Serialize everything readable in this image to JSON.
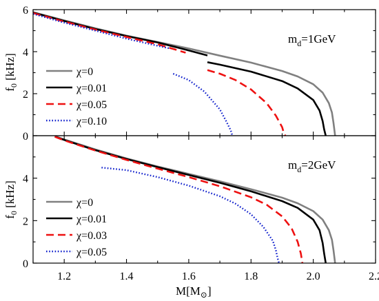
{
  "chart_data": [
    {
      "type": "line",
      "panel": "top",
      "annotation": {
        "base": "m",
        "sub": "d",
        "rest": "=1GeV"
      },
      "ylabel": {
        "base": "f",
        "sub": "0",
        "unit": " [kHz]"
      },
      "xlim": [
        1.1,
        2.2
      ],
      "ylim": [
        0,
        6
      ],
      "xticks": [],
      "yticks": [
        0,
        2,
        4,
        6
      ],
      "legend_position": "lower-left",
      "series": [
        {
          "name": "χ=0",
          "color": "#808080",
          "dash": "solid",
          "x": [
            1.1,
            1.2,
            1.3,
            1.4,
            1.5,
            1.6,
            1.7,
            1.8,
            1.9,
            1.95,
            2.0,
            2.03,
            2.05,
            2.06,
            2.065,
            2.07
          ],
          "y": [
            5.88,
            5.49,
            5.11,
            4.76,
            4.46,
            4.15,
            3.81,
            3.48,
            3.08,
            2.82,
            2.45,
            2.05,
            1.55,
            1.1,
            0.6,
            0.0
          ]
        },
        {
          "name": "χ=0.01",
          "color": "#000000",
          "dash": "solid",
          "segments": [
            {
              "x": [
                1.1,
                1.2,
                1.3,
                1.4,
                1.5,
                1.6,
                1.66
              ],
              "y": [
                5.86,
                5.46,
                5.08,
                4.74,
                4.44,
                4.06,
                3.82
              ]
            },
            {
              "x": [
                1.66,
                1.7,
                1.8,
                1.9,
                1.95,
                2.0,
                2.02,
                2.03,
                2.035,
                2.04
              ],
              "y": [
                3.5,
                3.38,
                3.05,
                2.6,
                2.25,
                1.7,
                1.2,
                0.7,
                0.3,
                0.0
              ]
            }
          ]
        },
        {
          "name": "χ=0.05",
          "color": "#ee1111",
          "dash": "dashed",
          "segments": [
            {
              "x": [
                1.1,
                1.2,
                1.3,
                1.4,
                1.5,
                1.55,
                1.59
              ],
              "y": [
                5.84,
                5.43,
                5.05,
                4.7,
                4.35,
                4.13,
                3.95
              ]
            },
            {
              "x": [
                1.66,
                1.7,
                1.75,
                1.8,
                1.85,
                1.88,
                1.9,
                1.905,
                1.91
              ],
              "y": [
                3.12,
                2.95,
                2.65,
                2.2,
                1.55,
                0.95,
                0.4,
                0.15,
                0.0
              ]
            }
          ]
        },
        {
          "name": "χ=0.10",
          "color": "#1020cc",
          "dash": "dotted",
          "segments": [
            {
              "x": [
                1.1,
                1.2,
                1.3,
                1.4,
                1.5,
                1.54
              ],
              "y": [
                5.8,
                5.38,
                5.0,
                4.62,
                4.28,
                4.15
              ]
            },
            {
              "x": [
                1.55,
                1.6,
                1.65,
                1.7,
                1.72,
                1.735,
                1.74
              ],
              "y": [
                2.95,
                2.65,
                2.1,
                1.25,
                0.7,
                0.25,
                0.0
              ]
            }
          ]
        }
      ]
    },
    {
      "type": "line",
      "panel": "bottom",
      "annotation": {
        "base": "m",
        "sub": "d",
        "rest": "=2GeV"
      },
      "ylabel": {
        "base": "f",
        "sub": "0",
        "unit": " [kHz]"
      },
      "xlabel": {
        "text": "M[M",
        "sub": "⊙",
        "close": "]"
      },
      "xlim": [
        1.1,
        2.2
      ],
      "ylim": [
        0,
        6
      ],
      "xticks": [
        1.2,
        1.4,
        1.6,
        1.8,
        2.0,
        2.2
      ],
      "yticks": [
        0,
        2,
        4
      ],
      "legend_position": "lower-left",
      "series": [
        {
          "name": "χ=0",
          "color": "#808080",
          "dash": "solid",
          "x": [
            1.17,
            1.2,
            1.3,
            1.4,
            1.5,
            1.6,
            1.7,
            1.8,
            1.9,
            1.95,
            2.0,
            2.03,
            2.05,
            2.06,
            2.065,
            2.07
          ],
          "y": [
            5.98,
            5.82,
            5.35,
            4.93,
            4.55,
            4.2,
            3.85,
            3.48,
            3.08,
            2.82,
            2.45,
            2.05,
            1.55,
            1.1,
            0.6,
            0.0
          ]
        },
        {
          "name": "χ=0.01",
          "color": "#000000",
          "dash": "solid",
          "x": [
            1.17,
            1.2,
            1.3,
            1.4,
            1.5,
            1.6,
            1.7,
            1.8,
            1.9,
            1.95,
            2.0,
            2.02,
            2.03,
            2.035,
            2.04
          ],
          "y": [
            5.96,
            5.8,
            5.32,
            4.9,
            4.52,
            4.15,
            3.78,
            3.38,
            2.92,
            2.6,
            2.05,
            1.55,
            0.95,
            0.45,
            0.0
          ]
        },
        {
          "name": "χ=0.03",
          "color": "#ee1111",
          "dash": "dashed",
          "x": [
            1.17,
            1.2,
            1.3,
            1.4,
            1.5,
            1.6,
            1.7,
            1.8,
            1.85,
            1.9,
            1.93,
            1.95,
            1.96,
            1.965
          ],
          "y": [
            5.95,
            5.78,
            5.3,
            4.86,
            4.45,
            4.05,
            3.62,
            3.1,
            2.75,
            2.2,
            1.65,
            1.0,
            0.45,
            0.0
          ]
        },
        {
          "name": "χ=0.05",
          "color": "#1020cc",
          "dash": "dotted",
          "x": [
            1.32,
            1.4,
            1.5,
            1.6,
            1.7,
            1.75,
            1.8,
            1.84,
            1.87,
            1.88,
            1.885,
            1.89
          ],
          "y": [
            4.5,
            4.38,
            4.05,
            3.65,
            3.15,
            2.8,
            2.3,
            1.7,
            1.05,
            0.6,
            0.25,
            0.0
          ]
        }
      ]
    }
  ]
}
